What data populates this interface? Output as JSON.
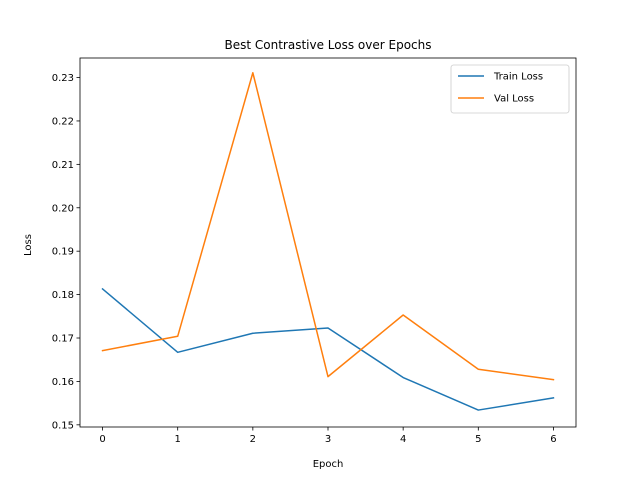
{
  "chart_data": {
    "type": "line",
    "title": "Best Contrastive Loss over Epochs",
    "xlabel": "Epoch",
    "ylabel": "Loss",
    "x": [
      0,
      1,
      2,
      3,
      4,
      5,
      6
    ],
    "xlim": [
      -0.3,
      6.3
    ],
    "ylim": [
      0.1495,
      0.2345
    ],
    "xticks": [
      "0",
      "1",
      "2",
      "3",
      "4",
      "5",
      "6"
    ],
    "yticks": [
      "0.15",
      "0.16",
      "0.17",
      "0.18",
      "0.19",
      "0.20",
      "0.21",
      "0.22",
      "0.23"
    ],
    "grid": false,
    "legend_position": "top-right",
    "series": [
      {
        "name": "Train Loss",
        "color": "#1f77b4",
        "values": [
          0.1813,
          0.1667,
          0.1711,
          0.1723,
          0.1609,
          0.1534,
          0.1562
        ]
      },
      {
        "name": "Val Loss",
        "color": "#ff7f0e",
        "values": [
          0.1671,
          0.1704,
          0.2311,
          0.1611,
          0.1753,
          0.1628,
          0.1604
        ]
      }
    ]
  }
}
